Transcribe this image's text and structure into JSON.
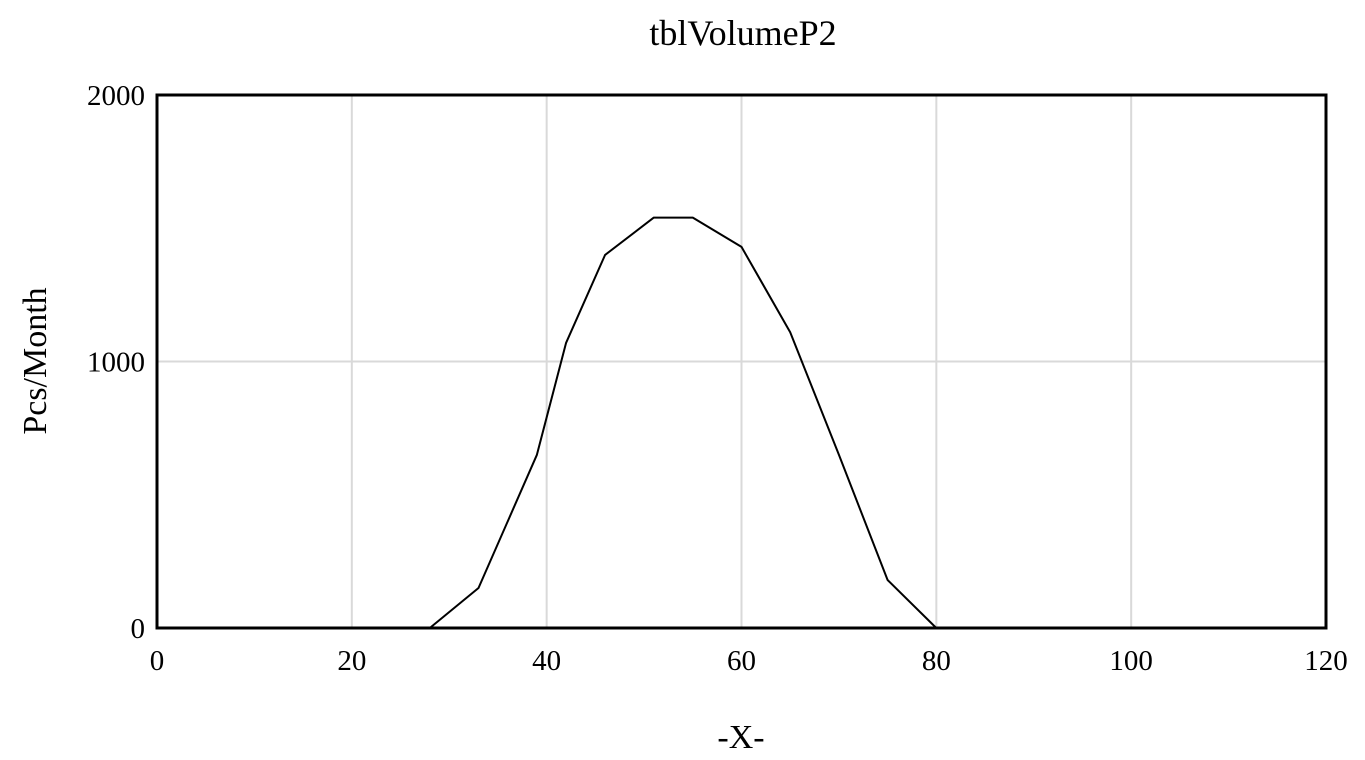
{
  "chart_data": {
    "type": "line",
    "title": "tblVolumeP2",
    "xlabel": "-X-",
    "ylabel": "Pcs/Month",
    "xlim": [
      0,
      120
    ],
    "ylim": [
      0,
      2000
    ],
    "x_ticks": [
      0,
      20,
      40,
      60,
      80,
      100,
      120
    ],
    "y_ticks": [
      0,
      1000,
      2000
    ],
    "grid": true,
    "series": [
      {
        "x": [
          0,
          28,
          33,
          39,
          42,
          46,
          51,
          55,
          60,
          65,
          70,
          75,
          80,
          120
        ],
        "values": [
          0,
          0,
          150,
          650,
          1070,
          1400,
          1540,
          1540,
          1430,
          1110,
          650,
          180,
          0,
          0
        ],
        "color": "#000000"
      }
    ]
  }
}
